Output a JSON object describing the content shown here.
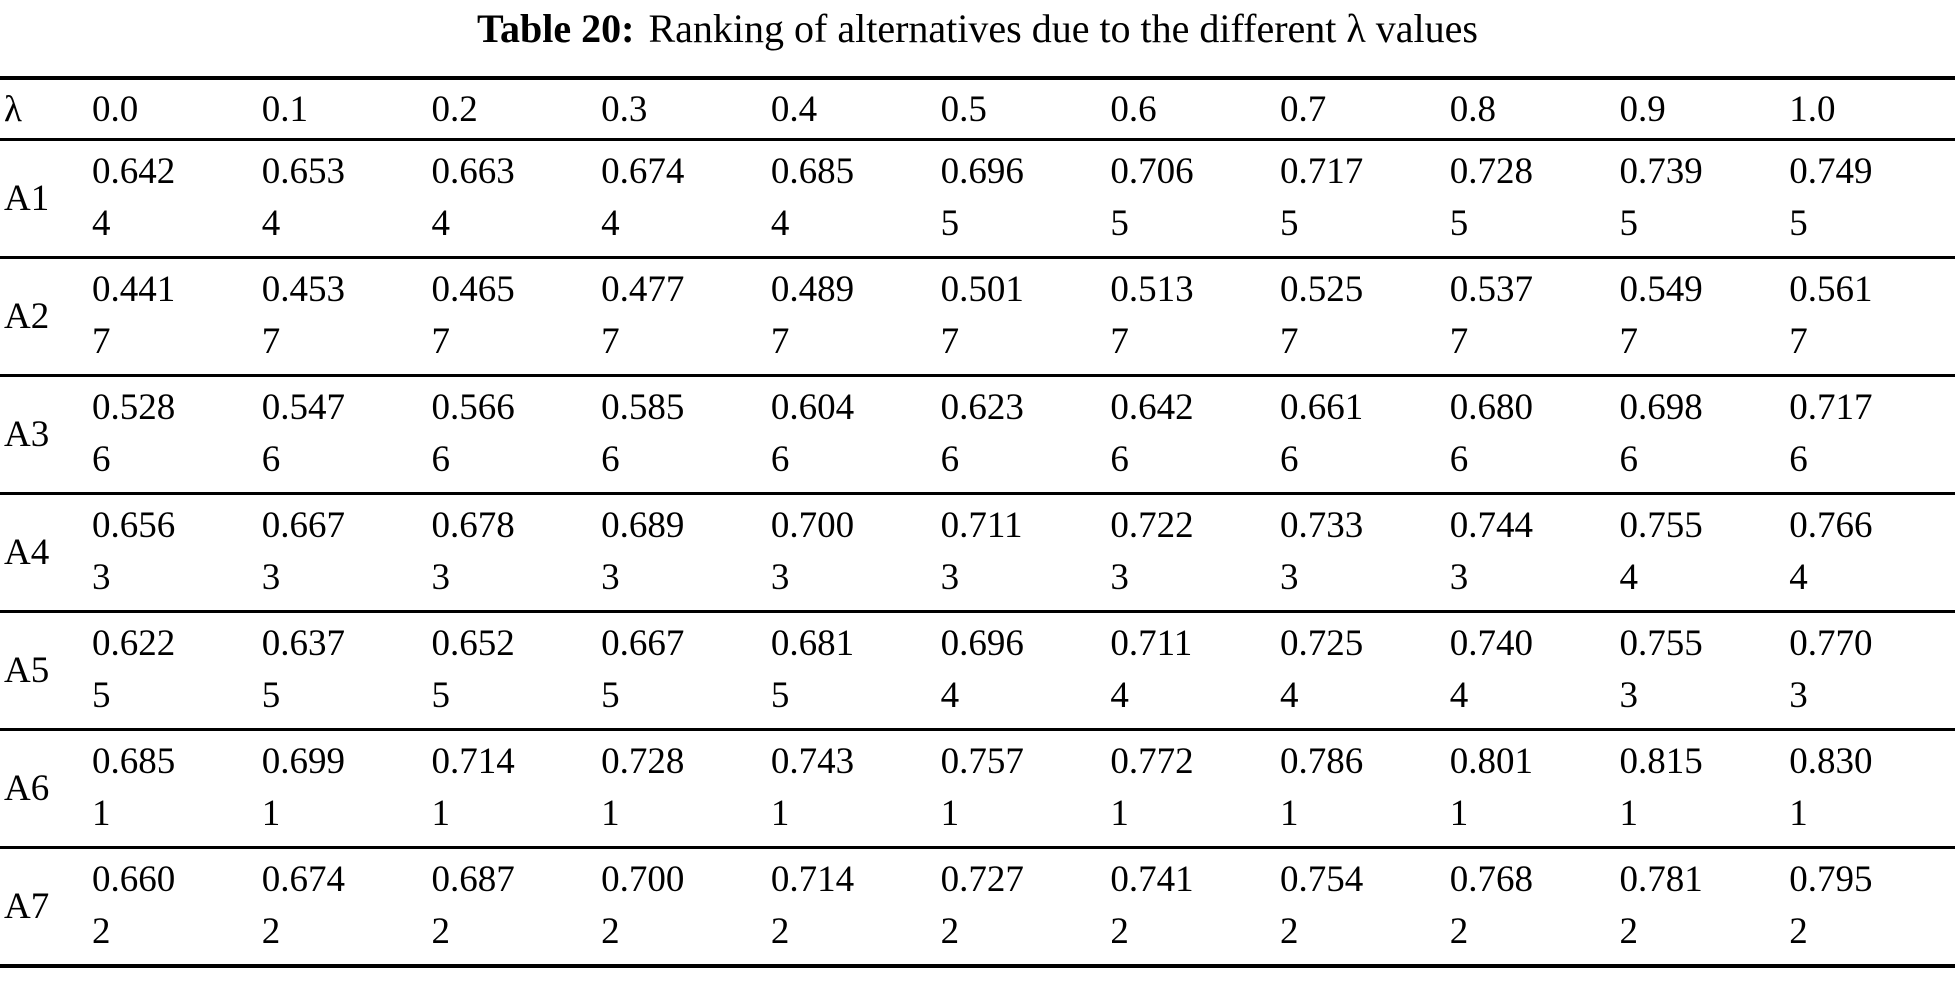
{
  "caption": {
    "label": "Table 20:",
    "text": "Ranking of alternatives due to the different λ values"
  },
  "table": {
    "corner_header": "λ",
    "lambda_values": [
      "0.0",
      "0.1",
      "0.2",
      "0.3",
      "0.4",
      "0.5",
      "0.6",
      "0.7",
      "0.8",
      "0.9",
      "1.0"
    ],
    "rows": [
      {
        "alternative": "A1",
        "cells": [
          {
            "value": "0.642",
            "rank": "4"
          },
          {
            "value": "0.653",
            "rank": "4"
          },
          {
            "value": "0.663",
            "rank": "4"
          },
          {
            "value": "0.674",
            "rank": "4"
          },
          {
            "value": "0.685",
            "rank": "4"
          },
          {
            "value": "0.696",
            "rank": "5"
          },
          {
            "value": "0.706",
            "rank": "5"
          },
          {
            "value": "0.717",
            "rank": "5"
          },
          {
            "value": "0.728",
            "rank": "5"
          },
          {
            "value": "0.739",
            "rank": "5"
          },
          {
            "value": "0.749",
            "rank": "5"
          }
        ]
      },
      {
        "alternative": "A2",
        "cells": [
          {
            "value": "0.441",
            "rank": "7"
          },
          {
            "value": "0.453",
            "rank": "7"
          },
          {
            "value": "0.465",
            "rank": "7"
          },
          {
            "value": "0.477",
            "rank": "7"
          },
          {
            "value": "0.489",
            "rank": "7"
          },
          {
            "value": "0.501",
            "rank": "7"
          },
          {
            "value": "0.513",
            "rank": "7"
          },
          {
            "value": "0.525",
            "rank": "7"
          },
          {
            "value": "0.537",
            "rank": "7"
          },
          {
            "value": "0.549",
            "rank": "7"
          },
          {
            "value": "0.561",
            "rank": "7"
          }
        ]
      },
      {
        "alternative": "A3",
        "cells": [
          {
            "value": "0.528",
            "rank": "6"
          },
          {
            "value": "0.547",
            "rank": "6"
          },
          {
            "value": "0.566",
            "rank": "6"
          },
          {
            "value": "0.585",
            "rank": "6"
          },
          {
            "value": "0.604",
            "rank": "6"
          },
          {
            "value": "0.623",
            "rank": "6"
          },
          {
            "value": "0.642",
            "rank": "6"
          },
          {
            "value": "0.661",
            "rank": "6"
          },
          {
            "value": "0.680",
            "rank": "6"
          },
          {
            "value": "0.698",
            "rank": "6"
          },
          {
            "value": "0.717",
            "rank": "6"
          }
        ]
      },
      {
        "alternative": "A4",
        "cells": [
          {
            "value": "0.656",
            "rank": "3"
          },
          {
            "value": "0.667",
            "rank": "3"
          },
          {
            "value": "0.678",
            "rank": "3"
          },
          {
            "value": "0.689",
            "rank": "3"
          },
          {
            "value": "0.700",
            "rank": "3"
          },
          {
            "value": "0.711",
            "rank": "3"
          },
          {
            "value": "0.722",
            "rank": "3"
          },
          {
            "value": "0.733",
            "rank": "3"
          },
          {
            "value": "0.744",
            "rank": "3"
          },
          {
            "value": "0.755",
            "rank": "4"
          },
          {
            "value": "0.766",
            "rank": "4"
          }
        ]
      },
      {
        "alternative": "A5",
        "cells": [
          {
            "value": "0.622",
            "rank": "5"
          },
          {
            "value": "0.637",
            "rank": "5"
          },
          {
            "value": "0.652",
            "rank": "5"
          },
          {
            "value": "0.667",
            "rank": "5"
          },
          {
            "value": "0.681",
            "rank": "5"
          },
          {
            "value": "0.696",
            "rank": "4"
          },
          {
            "value": "0.711",
            "rank": "4"
          },
          {
            "value": "0.725",
            "rank": "4"
          },
          {
            "value": "0.740",
            "rank": "4"
          },
          {
            "value": "0.755",
            "rank": "3"
          },
          {
            "value": "0.770",
            "rank": "3"
          }
        ]
      },
      {
        "alternative": "A6",
        "cells": [
          {
            "value": "0.685",
            "rank": "1"
          },
          {
            "value": "0.699",
            "rank": "1"
          },
          {
            "value": "0.714",
            "rank": "1"
          },
          {
            "value": "0.728",
            "rank": "1"
          },
          {
            "value": "0.743",
            "rank": "1"
          },
          {
            "value": "0.757",
            "rank": "1"
          },
          {
            "value": "0.772",
            "rank": "1"
          },
          {
            "value": "0.786",
            "rank": "1"
          },
          {
            "value": "0.801",
            "rank": "1"
          },
          {
            "value": "0.815",
            "rank": "1"
          },
          {
            "value": "0.830",
            "rank": "1"
          }
        ]
      },
      {
        "alternative": "A7",
        "cells": [
          {
            "value": "0.660",
            "rank": "2"
          },
          {
            "value": "0.674",
            "rank": "2"
          },
          {
            "value": "0.687",
            "rank": "2"
          },
          {
            "value": "0.700",
            "rank": "2"
          },
          {
            "value": "0.714",
            "rank": "2"
          },
          {
            "value": "0.727",
            "rank": "2"
          },
          {
            "value": "0.741",
            "rank": "2"
          },
          {
            "value": "0.754",
            "rank": "2"
          },
          {
            "value": "0.768",
            "rank": "2"
          },
          {
            "value": "0.781",
            "rank": "2"
          },
          {
            "value": "0.795",
            "rank": "2"
          }
        ]
      }
    ]
  }
}
